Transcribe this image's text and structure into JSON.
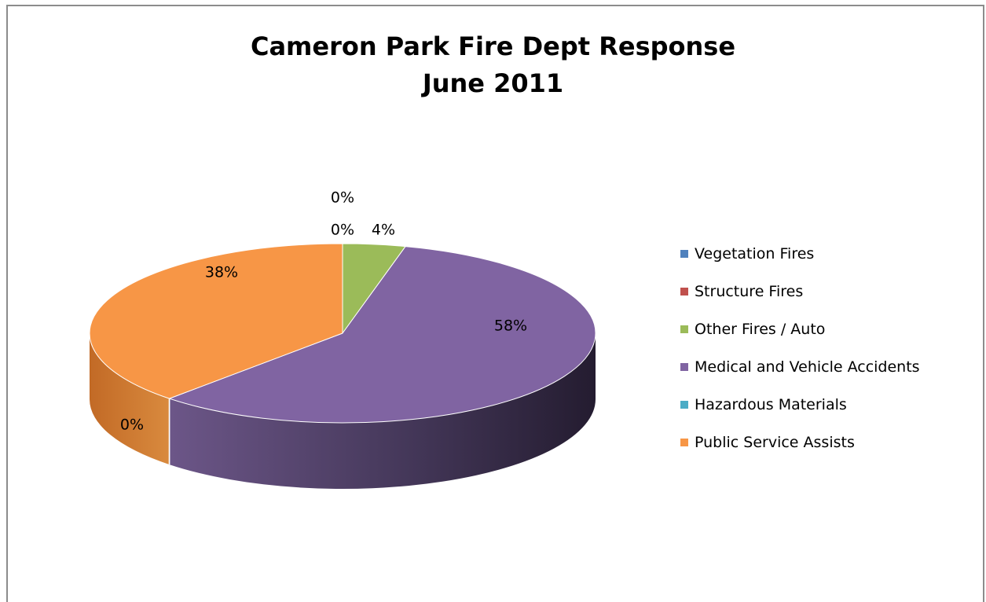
{
  "chart_data": {
    "type": "pie",
    "title": [
      "Cameron Park Fire Dept Response",
      "June 2011"
    ],
    "categories": [
      "Vegetation Fires",
      "Structure Fires",
      "Other Fires / Auto",
      "Medical and Vehicle Accidents",
      "Hazardous Materials",
      "Public Service Assists"
    ],
    "values": [
      0,
      0,
      4,
      58,
      0,
      38
    ],
    "data_labels": [
      "0%",
      "0%",
      "4%",
      "58%",
      "0%",
      "38%"
    ],
    "unit": "%",
    "colors": [
      "#4F81BD",
      "#C0504D",
      "#9BBB59",
      "#8064A2",
      "#4BACC6",
      "#F79646"
    ],
    "legend_position": "right",
    "style": "3d-pie"
  }
}
